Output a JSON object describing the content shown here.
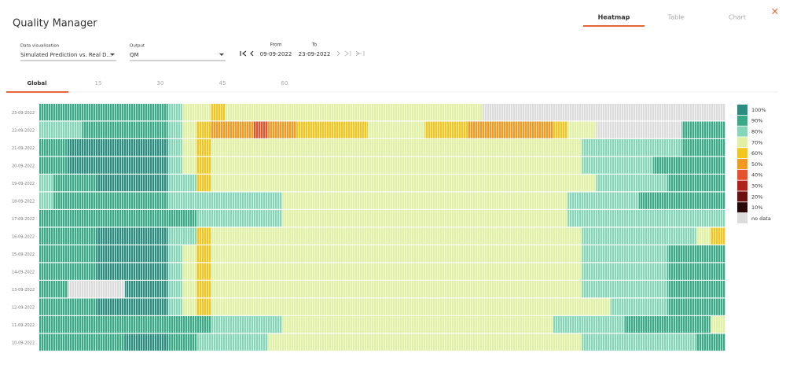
{
  "header": {
    "title": "Quality Manager",
    "tabs": [
      "Heatmap",
      "Table",
      "Chart"
    ],
    "close": "×"
  },
  "controls": {
    "visualisation": {
      "label": "Data visualisation",
      "value": "Simulated Prediction vs. Real D..."
    },
    "output": {
      "label": "Output",
      "value": "QM"
    },
    "from": {
      "label": "From",
      "value": "09-09-2022"
    },
    "to": {
      "label": "To",
      "value": "23-09-2022"
    }
  },
  "subtabs": [
    "Global",
    "15",
    "30",
    "45",
    "60"
  ],
  "chart_data": {
    "type": "heatmap",
    "rows": [
      "23-09-2022",
      "22-09-2022",
      "21-09-2022",
      "20-09-2022",
      "19-09-2022",
      "18-09-2022",
      "17-09-2022",
      "16-09-2022",
      "15-09-2022",
      "14-09-2022",
      "13-09-2022",
      "12-09-2022",
      "11-09-2022",
      "10-09-2022"
    ],
    "values": [
      [
        90,
        90,
        90,
        90,
        90,
        90,
        90,
        90,
        90,
        80,
        70,
        70,
        60,
        70,
        70,
        70,
        70,
        70,
        70,
        70,
        70,
        70,
        70,
        70,
        70,
        70,
        70,
        70,
        70,
        70,
        70,
        null,
        null,
        null,
        null,
        null,
        null,
        null,
        null,
        null,
        null,
        null,
        null,
        null,
        null,
        null,
        null,
        null
      ],
      [
        80,
        80,
        80,
        90,
        90,
        90,
        90,
        90,
        90,
        80,
        70,
        60,
        50,
        50,
        50,
        40,
        50,
        50,
        60,
        60,
        60,
        60,
        60,
        70,
        70,
        70,
        70,
        60,
        60,
        60,
        50,
        50,
        50,
        50,
        50,
        50,
        60,
        70,
        70,
        null,
        null,
        null,
        null,
        null,
        null,
        90,
        90,
        90
      ],
      [
        90,
        90,
        100,
        100,
        100,
        100,
        100,
        100,
        100,
        80,
        70,
        60,
        70,
        70,
        70,
        70,
        70,
        70,
        70,
        70,
        70,
        70,
        70,
        70,
        70,
        70,
        70,
        70,
        70,
        70,
        70,
        70,
        70,
        70,
        70,
        70,
        70,
        70,
        80,
        80,
        80,
        80,
        80,
        80,
        80,
        90,
        90,
        90
      ],
      [
        90,
        90,
        100,
        100,
        100,
        100,
        100,
        100,
        100,
        80,
        70,
        60,
        70,
        70,
        70,
        70,
        70,
        70,
        70,
        70,
        70,
        70,
        70,
        70,
        70,
        70,
        70,
        70,
        70,
        70,
        70,
        70,
        70,
        70,
        70,
        70,
        70,
        70,
        80,
        80,
        80,
        80,
        80,
        90,
        90,
        90,
        90,
        90
      ],
      [
        80,
        90,
        90,
        90,
        100,
        100,
        100,
        100,
        100,
        80,
        80,
        60,
        70,
        70,
        70,
        70,
        70,
        70,
        70,
        70,
        70,
        70,
        70,
        70,
        70,
        70,
        70,
        70,
        70,
        70,
        70,
        70,
        70,
        70,
        70,
        70,
        70,
        70,
        70,
        80,
        80,
        80,
        80,
        80,
        90,
        90,
        90,
        90
      ],
      [
        80,
        90,
        90,
        90,
        90,
        90,
        90,
        90,
        90,
        80,
        80,
        80,
        80,
        80,
        80,
        80,
        80,
        70,
        70,
        70,
        70,
        70,
        70,
        70,
        70,
        70,
        70,
        70,
        70,
        70,
        70,
        70,
        70,
        70,
        70,
        70,
        70,
        80,
        80,
        80,
        80,
        80,
        90,
        90,
        90,
        90,
        90,
        90
      ],
      [
        90,
        90,
        90,
        90,
        90,
        90,
        90,
        90,
        90,
        90,
        90,
        80,
        80,
        80,
        80,
        80,
        80,
        70,
        70,
        70,
        70,
        70,
        70,
        70,
        70,
        70,
        70,
        70,
        70,
        70,
        70,
        70,
        70,
        70,
        70,
        70,
        70,
        80,
        80,
        80,
        80,
        80,
        80,
        80,
        80,
        80,
        80,
        80
      ],
      [
        90,
        90,
        90,
        90,
        100,
        100,
        100,
        100,
        100,
        80,
        80,
        60,
        70,
        70,
        70,
        70,
        70,
        70,
        70,
        70,
        70,
        70,
        70,
        70,
        70,
        70,
        70,
        70,
        70,
        70,
        70,
        70,
        70,
        70,
        70,
        70,
        70,
        70,
        80,
        80,
        80,
        80,
        80,
        80,
        80,
        80,
        70,
        60
      ],
      [
        90,
        90,
        90,
        90,
        100,
        100,
        100,
        100,
        100,
        80,
        70,
        60,
        70,
        70,
        70,
        70,
        70,
        70,
        70,
        70,
        70,
        70,
        70,
        70,
        70,
        70,
        70,
        70,
        70,
        70,
        70,
        70,
        70,
        70,
        70,
        70,
        70,
        70,
        80,
        80,
        80,
        80,
        80,
        80,
        90,
        90,
        90,
        90
      ],
      [
        90,
        90,
        90,
        90,
        100,
        100,
        100,
        100,
        100,
        80,
        70,
        60,
        70,
        70,
        70,
        70,
        70,
        70,
        70,
        70,
        70,
        70,
        70,
        70,
        70,
        70,
        70,
        70,
        70,
        70,
        70,
        70,
        70,
        70,
        70,
        70,
        70,
        70,
        80,
        80,
        80,
        80,
        80,
        80,
        90,
        90,
        90,
        90
      ],
      [
        90,
        90,
        null,
        null,
        null,
        null,
        100,
        100,
        100,
        80,
        70,
        60,
        70,
        70,
        70,
        70,
        70,
        70,
        70,
        70,
        70,
        70,
        70,
        70,
        70,
        70,
        70,
        70,
        70,
        70,
        70,
        70,
        70,
        70,
        70,
        70,
        70,
        70,
        80,
        80,
        80,
        80,
        80,
        80,
        90,
        90,
        90,
        90
      ],
      [
        90,
        90,
        90,
        90,
        100,
        100,
        100,
        100,
        100,
        80,
        70,
        60,
        70,
        70,
        70,
        70,
        70,
        70,
        70,
        70,
        70,
        70,
        70,
        70,
        70,
        70,
        70,
        70,
        70,
        70,
        70,
        70,
        70,
        70,
        70,
        70,
        70,
        70,
        70,
        70,
        80,
        80,
        80,
        80,
        90,
        90,
        90,
        90
      ],
      [
        90,
        90,
        90,
        90,
        90,
        90,
        90,
        90,
        90,
        90,
        90,
        90,
        80,
        80,
        80,
        80,
        80,
        70,
        70,
        70,
        70,
        70,
        70,
        70,
        70,
        70,
        70,
        70,
        70,
        70,
        70,
        70,
        70,
        70,
        70,
        70,
        80,
        80,
        80,
        80,
        80,
        90,
        90,
        90,
        90,
        90,
        90,
        70
      ],
      [
        90,
        90,
        90,
        90,
        90,
        90,
        100,
        100,
        100,
        90,
        90,
        80,
        80,
        80,
        80,
        80,
        70,
        70,
        70,
        70,
        70,
        70,
        70,
        70,
        70,
        70,
        70,
        70,
        70,
        70,
        70,
        70,
        70,
        70,
        70,
        70,
        70,
        70,
        80,
        80,
        80,
        80,
        80,
        80,
        80,
        80,
        90,
        90
      ]
    ],
    "legend": [
      {
        "value": 100,
        "label": "100%",
        "color": "#2b8c80"
      },
      {
        "value": 90,
        "label": "90%",
        "color": "#3aa986"
      },
      {
        "value": 80,
        "label": "80%",
        "color": "#85d6b8"
      },
      {
        "value": 70,
        "label": "70%",
        "color": "#e0f1a4"
      },
      {
        "value": 60,
        "label": "60%",
        "color": "#f4c51c"
      },
      {
        "value": 50,
        "label": "50%",
        "color": "#f29a20"
      },
      {
        "value": 40,
        "label": "40%",
        "color": "#e5522b"
      },
      {
        "value": 30,
        "label": "30%",
        "color": "#b0231d"
      },
      {
        "value": 20,
        "label": "20%",
        "color": "#6d1010"
      },
      {
        "value": 10,
        "label": "10%",
        "color": "#2a0707"
      }
    ],
    "no_data": {
      "label": "no data",
      "color": "#dcdcdc"
    }
  }
}
